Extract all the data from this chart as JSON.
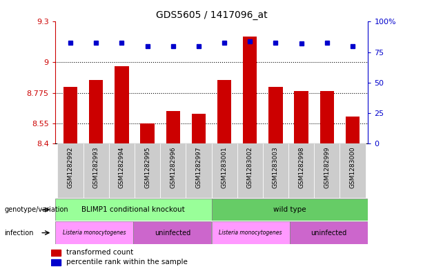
{
  "title": "GDS5605 / 1417096_at",
  "samples": [
    "GSM1282992",
    "GSM1282993",
    "GSM1282994",
    "GSM1282995",
    "GSM1282996",
    "GSM1282997",
    "GSM1283001",
    "GSM1283002",
    "GSM1283003",
    "GSM1282998",
    "GSM1282999",
    "GSM1283000"
  ],
  "red_values": [
    8.82,
    8.87,
    8.97,
    8.55,
    8.64,
    8.62,
    8.87,
    9.19,
    8.82,
    8.79,
    8.79,
    8.6
  ],
  "blue_values": [
    83,
    83,
    83,
    80,
    80,
    80,
    83,
    84,
    83,
    82,
    83,
    80
  ],
  "ymin": 8.4,
  "ymax": 9.3,
  "yticks": [
    8.4,
    8.55,
    8.775,
    9.0,
    9.3
  ],
  "ytick_labels": [
    "8.4",
    "8.55",
    "8.775",
    "9",
    "9.3"
  ],
  "right_yticks": [
    0,
    25,
    50,
    75,
    100
  ],
  "right_ytick_labels": [
    "0",
    "25",
    "50",
    "75",
    "100%"
  ],
  "bar_color": "#CC0000",
  "dot_color": "#0000CC",
  "bg_color": "#FFFFFF",
  "group1_label": "BLIMP1 conditional knockout",
  "group2_label": "wild type",
  "group1_color": "#99FF99",
  "group2_color": "#66CC66",
  "infection1_label": "Listeria monocytogenes",
  "infection2_label": "uninfected",
  "infection3_label": "Listeria monocytogenes",
  "infection4_label": "uninfected",
  "infection1_color": "#FF99FF",
  "infection2_color": "#CC66CC",
  "infection3_color": "#FF99FF",
  "infection4_color": "#CC66CC",
  "legend_red": "transformed count",
  "legend_blue": "percentile rank within the sample",
  "bar_width": 0.55,
  "left_label_color": "#CC0000",
  "right_label_color": "#0000CC"
}
